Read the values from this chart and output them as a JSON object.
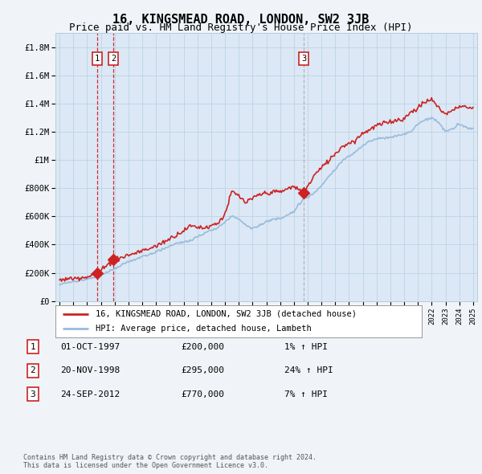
{
  "title": "16, KINGSMEAD ROAD, LONDON, SW2 3JB",
  "subtitle": "Price paid vs. HM Land Registry's House Price Index (HPI)",
  "ylim": [
    0,
    1900000
  ],
  "yticks": [
    0,
    200000,
    400000,
    600000,
    800000,
    1000000,
    1200000,
    1400000,
    1600000,
    1800000
  ],
  "ytick_labels": [
    "£0",
    "£200K",
    "£400K",
    "£600K",
    "£800K",
    "£1M",
    "£1.2M",
    "£1.4M",
    "£1.6M",
    "£1.8M"
  ],
  "sale_dates": [
    1997.75,
    1998.92,
    2012.73
  ],
  "sale_prices": [
    200000,
    295000,
    770000
  ],
  "sale_labels": [
    "1",
    "2",
    "3"
  ],
  "vline1_color": "#cc0000",
  "vline2_color": "#cc0000",
  "vline3_color": "#aaaaaa",
  "legend_line1": "16, KINGSMEAD ROAD, LONDON, SW2 3JB (detached house)",
  "legend_line2": "HPI: Average price, detached house, Lambeth",
  "table_data": [
    [
      "1",
      "01-OCT-1997",
      "£200,000",
      "1% ↑ HPI"
    ],
    [
      "2",
      "20-NOV-1998",
      "£295,000",
      "24% ↑ HPI"
    ],
    [
      "3",
      "24-SEP-2012",
      "£770,000",
      "7% ↑ HPI"
    ]
  ],
  "footer": "Contains HM Land Registry data © Crown copyright and database right 2024.\nThis data is licensed under the Open Government Licence v3.0.",
  "line_color_red": "#cc2222",
  "line_color_blue": "#99bbdd",
  "background_color": "#f0f4f8",
  "plot_bg_color": "#dce8f5",
  "grid_color": "#b8cfe0",
  "title_fontsize": 11,
  "subtitle_fontsize": 9
}
